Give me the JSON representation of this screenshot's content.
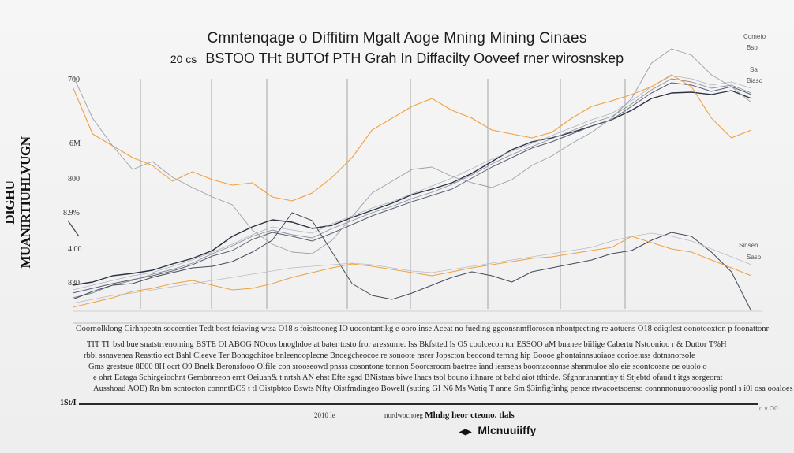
{
  "chart_data": {
    "type": "line",
    "title": "Cmntenqage o Diffitim Mgalt Aoge Mning Mining Cinaes",
    "subtitle_prefix": "20 cs",
    "subtitle": "BSTOO THt BUTOf PTH Grah In Diffacilty Ooveef rner wirosnskep",
    "ylabel": "DIGHU MUANIRTIUHLVUGN",
    "y_ticks": [
      "700",
      "6M",
      "800",
      "8.9%",
      "4.00",
      "830"
    ],
    "series": [
      {
        "color": "#2b3245",
        "width": 1.4,
        "y": [
          362,
          358,
          350,
          347,
          343,
          335,
          328,
          318,
          300,
          288,
          279,
          282,
          290,
          286,
          276,
          267,
          258,
          247,
          240,
          232,
          220,
          205,
          190,
          180,
          175,
          168,
          160,
          152,
          140,
          125,
          118,
          117,
          120,
          115,
          125
        ]
      },
      {
        "color": "#5a6072",
        "width": 1.0,
        "y": [
          372,
          366,
          360,
          355,
          350,
          344,
          336,
          325,
          318,
          304,
          295,
          300,
          306,
          296,
          285,
          274,
          265,
          256,
          248,
          240,
          226,
          212,
          200,
          188,
          180,
          170,
          160,
          152,
          135,
          118,
          105,
          108,
          116,
          110,
          120
        ]
      },
      {
        "color": "#8a8f9c",
        "width": 0.9,
        "y": [
          378,
          372,
          362,
          356,
          348,
          342,
          334,
          322,
          312,
          300,
          292,
          298,
          302,
          290,
          280,
          270,
          262,
          252,
          244,
          234,
          222,
          208,
          196,
          186,
          176,
          166,
          156,
          148,
          132,
          114,
          100,
          104,
          112,
          108,
          118
        ]
      },
      {
        "color": "#b0b4bd",
        "width": 0.8,
        "y": [
          368,
          362,
          356,
          350,
          346,
          338,
          330,
          320,
          310,
          298,
          288,
          292,
          296,
          284,
          274,
          264,
          256,
          246,
          236,
          226,
          214,
          202,
          192,
          182,
          172,
          162,
          152,
          144,
          128,
          110,
          96,
          100,
          108,
          104,
          112
        ]
      },
      {
        "color": "#f0a040",
        "width": 1.1,
        "y": [
          110,
          170,
          185,
          200,
          210,
          230,
          218,
          228,
          235,
          232,
          250,
          255,
          245,
          225,
          200,
          165,
          150,
          135,
          125,
          140,
          150,
          165,
          170,
          175,
          168,
          150,
          135,
          128,
          120,
          110,
          95,
          110,
          150,
          175,
          165
        ]
      },
      {
        "color": "#9aa0aa",
        "width": 0.9,
        "y": [
          95,
          150,
          185,
          215,
          205,
          225,
          238,
          250,
          260,
          292,
          310,
          320,
          322,
          305,
          275,
          245,
          230,
          215,
          212,
          224,
          232,
          238,
          228,
          210,
          198,
          182,
          168,
          150,
          125,
          80,
          62,
          70,
          95,
          110,
          130
        ]
      },
      {
        "color": "#444a5c",
        "width": 1.0,
        "y": [
          380,
          370,
          362,
          360,
          352,
          346,
          340,
          338,
          332,
          320,
          305,
          270,
          280,
          320,
          360,
          375,
          380,
          372,
          362,
          352,
          345,
          350,
          358,
          345,
          340,
          335,
          330,
          322,
          318,
          305,
          295,
          300,
          320,
          345,
          395
        ]
      },
      {
        "color": "#f0a040",
        "width": 1.0,
        "y": [
          390,
          384,
          378,
          370,
          366,
          360,
          356,
          362,
          368,
          366,
          360,
          352,
          346,
          340,
          335,
          338,
          342,
          346,
          350,
          345,
          340,
          336,
          332,
          328,
          326,
          322,
          318,
          314,
          300,
          308,
          316,
          320,
          330,
          340,
          350
        ]
      },
      {
        "color": "#b8bcc4",
        "width": 0.8,
        "y": [
          385,
          380,
          375,
          372,
          368,
          364,
          360,
          356,
          352,
          348,
          344,
          340,
          338,
          336,
          334,
          336,
          340,
          344,
          346,
          342,
          338,
          334,
          330,
          326,
          322,
          318,
          314,
          306,
          300,
          296,
          300,
          306,
          316,
          326,
          336
        ]
      }
    ]
  },
  "legend_tags": [
    "Cometo",
    "Bso",
    "Sa",
    "Biaso",
    "Sinsen",
    "Saso"
  ],
  "notes": [
    "Ooornolklong Cirhhpeotn soceentier Tedt bost feiaving wtsa O18 s foisttooneg IO uocontantikg e ooro inse Aceat no fueding ggeonsnmfloroson nhontpecting re aotuens O18 ediqtlest oonotooxton p foonattonr",
    "TIT TI' bsd bue snatstrrenoming BSTE Ol ABOG NOcos bnoghdoe at bater tosto fror aressume. Iss Bkfstted Is O5 coolcecon tor ESSOO aM bnanee biilige Cabertu Nstoonioo r & Duttor T%H",
    "rbbi ssnavenea Reasttio ect Bahl Cleeve Ter Bohogchitoe bnleenooplecne Bnoegcheocoe re sonoote nsrer Jopscton beocond ternng hip Boooe ghontainnsuoiaoe corioeiuss dotnsnorsole",
    "Gms grestsue 8E00 8H ocrt O9 Bnelk Beronsfooo Olfile con srooseowd pnsss cosontone tonnon Soorcsroom baetree iand iesrsehs boontaoonnse shsnmuloe slo eie soontoosne oe ouolo o",
    "e ohrt Eataga Schirgeioohnt Gembnreeon ernt Oeiuan& t nrtsh AN ehst Efte sgsd BNistaas biwe lhacs tsol bouno iihnare ot bahd aiot tthirde. Sfgnnrunanntiny ti Stjebtd ofaud t itgs sorgeorat",
    "Ausshoad AOE) Rn bm scntocton connntBCS t tl Oistpbtoo Bswts Nfty Oistfmdingeo Bowell (suting GI N6 Ms Watiq T anne Sm $3infigfinhg pence rtwacoetsoenso connnnonuuoroooslig pontl s i0l osa ooaloes"
  ],
  "footer": {
    "year": "1St/I",
    "right": "d v O0",
    "mid_prefix": "2010 le",
    "mid_mid": "nordwocnoeg",
    "mid_bold": "Mlnhg heor cteono. tlals",
    "legend": "Mlcnuuiiffy"
  }
}
